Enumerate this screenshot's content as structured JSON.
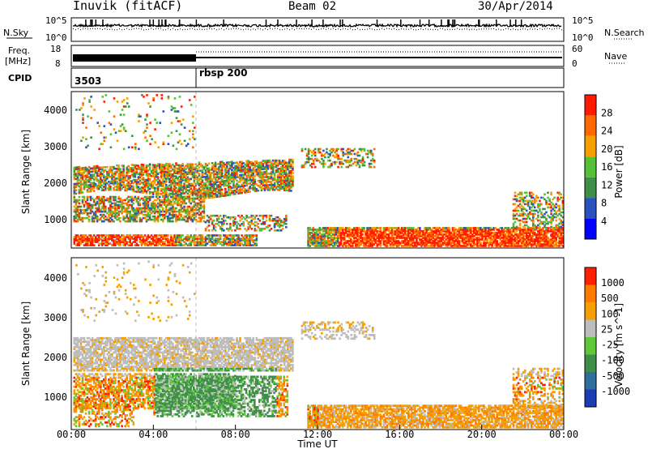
{
  "header": {
    "title": "Inuvik (fitACF)",
    "beam": "Beam 02",
    "date": "30/Apr/2014"
  },
  "strip_labels": {
    "nsky": "N.Sky",
    "nsearch": "N.Search",
    "freq_line1": "Freq.",
    "freq_line2": "[MHz]",
    "nave": "Nave",
    "cpid": "CPID"
  },
  "noise_axis": {
    "left_top": "10^5",
    "left_bottom": "10^0",
    "right_top": "10^5",
    "right_bottom": "10^0"
  },
  "freq_axis": {
    "left_ticks": [
      "18",
      "8"
    ],
    "right_ticks": [
      "60",
      "0"
    ]
  },
  "cpid": {
    "segments": [
      {
        "label": "3503",
        "start_hour": 0
      },
      {
        "label": "rbsp 200",
        "start_hour": 6
      }
    ]
  },
  "chart_data": [
    {
      "type": "heatmap",
      "name": "power",
      "ylabel": "Slant Range [km]",
      "yticks": [
        "4000",
        "3000",
        "2000",
        "1000"
      ],
      "ylim": [
        180,
        4500
      ],
      "xlim_hours": [
        0,
        24
      ],
      "colorbar": {
        "label": "Power [dB]",
        "ticks": [
          "28",
          "24",
          "20",
          "16",
          "12",
          "8",
          "4"
        ],
        "colors": [
          "#0000ff",
          "#2a52be",
          "#3f8f4a",
          "#56c038",
          "#f5a000",
          "#ff6a00",
          "#ff1a00"
        ]
      }
    },
    {
      "type": "heatmap",
      "name": "velocity",
      "ylabel": "Slant Range [km]",
      "yticks": [
        "4000",
        "3000",
        "2000",
        "1000"
      ],
      "ylim": [
        180,
        4500
      ],
      "xlim_hours": [
        0,
        24
      ],
      "xticks": [
        "00:00",
        "04:00",
        "08:00",
        "12:00",
        "16:00",
        "20:00",
        "00:00"
      ],
      "xlabel": "Time UT",
      "colorbar": {
        "label": "Velocity [m s^-1]",
        "ticks": [
          "1000",
          "500",
          "100",
          "25",
          "-25",
          "-100",
          "-500",
          "-1000"
        ],
        "colors": [
          "#1c3cb4",
          "#2f6fa0",
          "#3f8f4a",
          "#5ec83a",
          "#bdbdbd",
          "#f5a000",
          "#ff7a00",
          "#ff2000"
        ]
      }
    }
  ]
}
